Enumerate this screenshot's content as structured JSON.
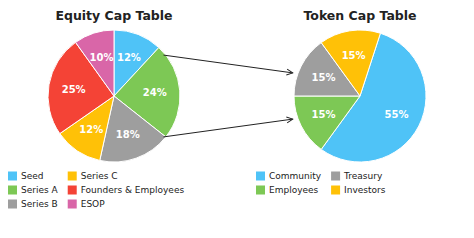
{
  "chart_data": [
    {
      "type": "pie",
      "title": "Equity Cap Table",
      "categories": [
        "Seed",
        "Series A",
        "Series B",
        "Series C",
        "Founders & Employees",
        "ESOP"
      ],
      "values": [
        12,
        24,
        18,
        12,
        25,
        10
      ],
      "value_labels": [
        "12%",
        "24%",
        "18%",
        "12%",
        "25%",
        "10%"
      ],
      "colors": [
        "#4fc3f7",
        "#7dc855",
        "#9e9e9e",
        "#ffc107",
        "#f44336",
        "#d966a8"
      ],
      "data_labels": true,
      "legend": "bottom"
    },
    {
      "type": "pie",
      "title": "Token Cap Table",
      "categories": [
        "Community",
        "Employees",
        "Treasury",
        "Investors"
      ],
      "values": [
        55,
        15,
        15,
        15
      ],
      "value_labels": [
        "55%",
        "15%",
        "15%",
        "15%"
      ],
      "colors": [
        "#4fc3f7",
        "#7dc855",
        "#9e9e9e",
        "#ffc107"
      ],
      "data_labels": true,
      "legend": "bottom"
    }
  ]
}
